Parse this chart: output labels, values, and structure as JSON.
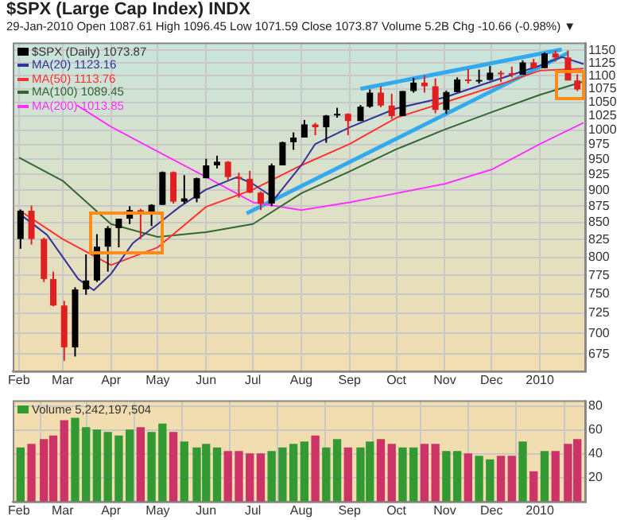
{
  "chart_data": [
    {
      "type": "candlestick",
      "title": "$SPX (Large Cap Index) INDX",
      "subtitle": "29-Jan-2010   Open 1087.61  High 1096.45  Low 1071.59  Close 1073.87  Volume 5.2B  Chg -10.66 (-0.98%) ▼",
      "log": true,
      "grid": true,
      "legend": "top left",
      "xlim": [
        "2009-01-28",
        "2010-01-30"
      ],
      "xticks": [
        {
          "value": "2009-02-01",
          "label": "Feb"
        },
        {
          "value": "2009-03-01",
          "label": "Mar"
        },
        {
          "value": "2009-04-01",
          "label": "Apr"
        },
        {
          "value": "2009-05-01",
          "label": "May"
        },
        {
          "value": "2009-06-01",
          "label": "Jun"
        },
        {
          "value": "2009-07-01",
          "label": "Jul"
        },
        {
          "value": "2009-08-01",
          "label": "Aug"
        },
        {
          "value": "2009-09-01",
          "label": "Sep"
        },
        {
          "value": "2009-10-01",
          "label": "Oct"
        },
        {
          "value": "2009-11-01",
          "label": "Nov"
        },
        {
          "value": "2009-12-01",
          "label": "Dec"
        },
        {
          "value": "2010-01-01",
          "label": "2010"
        }
      ],
      "ylim": [
        655,
        1166
      ],
      "yticks": [
        675,
        700,
        725,
        750,
        775,
        800,
        825,
        850,
        875,
        900,
        925,
        950,
        975,
        1000,
        1025,
        1050,
        1075,
        1100,
        1125,
        1150
      ],
      "series": [
        {
          "type": "candlestick",
          "name": "$SPX (Daily) 1073.87",
          "color": "#000000",
          "x": [
            "2009-02-02",
            "2009-02-09",
            "2009-02-17",
            "2009-02-23",
            "2009-03-02",
            "2009-03-09",
            "2009-03-16",
            "2009-03-23",
            "2009-03-30",
            "2009-04-06",
            "2009-04-13",
            "2009-04-20",
            "2009-04-27",
            "2009-05-04",
            "2009-05-11",
            "2009-05-18",
            "2009-05-26",
            "2009-06-01",
            "2009-06-08",
            "2009-06-15",
            "2009-06-22",
            "2009-06-29",
            "2009-07-06",
            "2009-07-13",
            "2009-07-20",
            "2009-07-27",
            "2009-08-03",
            "2009-08-10",
            "2009-08-17",
            "2009-08-24",
            "2009-08-31",
            "2009-09-08",
            "2009-09-14",
            "2009-09-21",
            "2009-09-28",
            "2009-10-05",
            "2009-10-12",
            "2009-10-19",
            "2009-10-26",
            "2009-11-02",
            "2009-11-09",
            "2009-11-16",
            "2009-11-23",
            "2009-11-30",
            "2009-12-07",
            "2009-12-14",
            "2009-12-21",
            "2009-12-28",
            "2010-01-04",
            "2010-01-11",
            "2010-01-19",
            "2010-01-25"
          ],
          "ohlc": [
            [
              826,
              870,
              812,
              868
            ],
            [
              868,
              876,
              818,
              826
            ],
            [
              826,
              828,
              766,
              770
            ],
            [
              770,
              780,
              734,
              735
            ],
            [
              735,
              741,
              667,
              683
            ],
            [
              683,
              759,
              672,
              756
            ],
            [
              756,
              804,
              749,
              768
            ],
            [
              768,
              833,
              766,
              815
            ],
            [
              815,
              845,
              780,
              842
            ],
            [
              842,
              856,
              814,
              856
            ],
            [
              856,
              875,
              848,
              869
            ],
            [
              869,
              871,
              826,
              866
            ],
            [
              866,
              878,
              845,
              877
            ],
            [
              877,
              930,
              877,
              929
            ],
            [
              929,
              930,
              879,
              882
            ],
            [
              882,
              924,
              879,
              887
            ],
            [
              887,
              920,
              881,
              919
            ],
            [
              919,
              951,
              919,
              940
            ],
            [
              940,
              956,
              935,
              946
            ],
            [
              946,
              947,
              916,
              921
            ],
            [
              921,
              928,
              888,
              918
            ],
            [
              918,
              931,
              895,
              896
            ],
            [
              896,
              898,
              869,
              879
            ],
            [
              879,
              943,
              875,
              940
            ],
            [
              940,
              980,
              940,
              979
            ],
            [
              979,
              996,
              966,
              987
            ],
            [
              987,
              1018,
              987,
              1010
            ],
            [
              1010,
              1013,
              991,
              1005
            ],
            [
              1005,
              1027,
              978,
              1026
            ],
            [
              1026,
              1040,
              1022,
              1029
            ],
            [
              1029,
              1030,
              991,
              1016
            ],
            [
              1016,
              1045,
              1016,
              1042
            ],
            [
              1042,
              1074,
              1040,
              1068
            ],
            [
              1068,
              1080,
              1041,
              1044
            ],
            [
              1044,
              1066,
              1020,
              1025
            ],
            [
              1025,
              1071,
              1025,
              1071
            ],
            [
              1071,
              1096,
              1068,
              1087
            ],
            [
              1087,
              1101,
              1068,
              1080
            ],
            [
              1080,
              1095,
              1030,
              1036
            ],
            [
              1036,
              1072,
              1029,
              1069
            ],
            [
              1069,
              1097,
              1069,
              1093
            ],
            [
              1093,
              1113,
              1085,
              1091
            ],
            [
              1091,
              1112,
              1085,
              1092
            ],
            [
              1092,
              1119,
              1091,
              1106
            ],
            [
              1106,
              1110,
              1088,
              1105
            ],
            [
              1105,
              1118,
              1097,
              1102
            ],
            [
              1102,
              1130,
              1102,
              1126
            ],
            [
              1126,
              1133,
              1115,
              1115
            ],
            [
              1115,
              1146,
              1115,
              1144
            ],
            [
              1144,
              1150,
              1128,
              1136
            ],
            [
              1136,
              1150,
              1091,
              1091
            ],
            [
              1091,
              1103,
              1071,
              1074
            ]
          ],
          "colors": [
            "#000000",
            "#e02020",
            "#e02020",
            "#e02020",
            "#e02020",
            "#000000",
            "#000000",
            "#000000",
            "#000000",
            "#000000",
            "#000000",
            "#e02020",
            "#000000",
            "#000000",
            "#e02020",
            "#000000",
            "#000000",
            "#000000",
            "#000000",
            "#e02020",
            "#e02020",
            "#e02020",
            "#e02020",
            "#000000",
            "#000000",
            "#000000",
            "#000000",
            "#e02020",
            "#000000",
            "#000000",
            "#e02020",
            "#000000",
            "#000000",
            "#e02020",
            "#e02020",
            "#000000",
            "#000000",
            "#e02020",
            "#e02020",
            "#000000",
            "#000000",
            "#e02020",
            "#000000",
            "#000000",
            "#e02020",
            "#e02020",
            "#000000",
            "#e02020",
            "#000000",
            "#e02020",
            "#e02020",
            "#e02020"
          ]
        },
        {
          "type": "line",
          "name": "MA(20) 1123.16",
          "color": "#333399",
          "x": [
            "2009-02-01",
            "2009-02-19",
            "2009-03-11",
            "2009-03-21",
            "2009-04-01",
            "2009-04-15",
            "2009-05-01",
            "2009-05-15",
            "2009-06-01",
            "2009-06-21",
            "2009-07-01",
            "2009-07-15",
            "2009-08-01",
            "2009-08-10",
            "2009-09-01",
            "2009-10-01",
            "2009-11-01",
            "2009-12-01",
            "2010-01-01",
            "2010-01-15",
            "2010-01-29"
          ],
          "values": [
            864,
            832,
            770,
            755,
            777,
            820,
            848,
            874,
            901,
            921,
            910,
            887,
            940,
            976,
            1005,
            1039,
            1059,
            1089,
            1120,
            1137,
            1123
          ]
        },
        {
          "type": "line",
          "name": "MA(50) 1113.76",
          "color": "#ff3333",
          "x": [
            "2009-02-01",
            "2009-03-01",
            "2009-04-01",
            "2009-05-01",
            "2009-06-01",
            "2009-07-01",
            "2009-08-01",
            "2009-09-01",
            "2009-10-01",
            "2009-11-01",
            "2009-12-01",
            "2010-01-01",
            "2010-01-29"
          ],
          "values": [
            869,
            826,
            789,
            814,
            874,
            901,
            940,
            976,
            1022,
            1050,
            1078,
            1110,
            1114
          ]
        },
        {
          "type": "line",
          "name": "MA(100) 1089.45",
          "color": "#336633",
          "x": [
            "2009-02-01",
            "2009-03-01",
            "2009-04-01",
            "2009-05-01",
            "2009-06-01",
            "2009-07-01",
            "2009-08-01",
            "2009-09-01",
            "2009-10-01",
            "2009-11-01",
            "2009-12-01",
            "2010-01-01",
            "2010-01-29"
          ],
          "values": [
            953,
            915,
            848,
            829,
            836,
            848,
            895,
            930,
            967,
            1001,
            1032,
            1064,
            1089
          ]
        },
        {
          "type": "line",
          "name": "MA(200) 1013.85",
          "color": "#ff33ff",
          "x": [
            "2009-03-10",
            "2009-04-01",
            "2009-05-01",
            "2009-06-01",
            "2009-07-01",
            "2009-08-01",
            "2009-09-01",
            "2009-10-01",
            "2009-11-01",
            "2009-12-01",
            "2010-01-01",
            "2010-01-29"
          ],
          "values": [
            1045,
            1006,
            963,
            921,
            881,
            869,
            881,
            895,
            910,
            933,
            976,
            1013
          ]
        },
        {
          "type": "line",
          "color": "#33aaee",
          "x": [
            "2009-06-27",
            "2010-01-19"
          ],
          "values": [
            864,
            1145
          ]
        },
        {
          "type": "line",
          "color": "#33aaee",
          "x": [
            "2009-09-08",
            "2010-01-15"
          ],
          "values": [
            1075,
            1152
          ]
        }
      ]
    },
    {
      "type": "bar",
      "grid": true,
      "legend": "top left",
      "xlim": [
        "2009-01-28",
        "2010-01-30"
      ],
      "xticks": [
        {
          "value": "2009-02-01",
          "label": "Feb"
        },
        {
          "value": "2009-03-01",
          "label": "Mar"
        },
        {
          "value": "2009-04-01",
          "label": "Apr"
        },
        {
          "value": "2009-05-01",
          "label": "May"
        },
        {
          "value": "2009-06-01",
          "label": "Jun"
        },
        {
          "value": "2009-07-01",
          "label": "Jul"
        },
        {
          "value": "2009-08-01",
          "label": "Aug"
        },
        {
          "value": "2009-09-01",
          "label": "Sep"
        },
        {
          "value": "2009-10-01",
          "label": "Oct"
        },
        {
          "value": "2009-11-01",
          "label": "Nov"
        },
        {
          "value": "2009-12-01",
          "label": "Dec"
        },
        {
          "value": "2010-01-01",
          "label": "2010"
        }
      ],
      "ylim": [
        0,
        85
      ],
      "yticks": [
        20,
        40,
        60,
        80
      ],
      "series": [
        {
          "type": "bar",
          "name": "Volume 5,242,197,504",
          "color": "#339933",
          "x": [
            "2009-02-02",
            "2009-02-09",
            "2009-02-17",
            "2009-02-23",
            "2009-03-02",
            "2009-03-09",
            "2009-03-16",
            "2009-03-23",
            "2009-03-30",
            "2009-04-06",
            "2009-04-13",
            "2009-04-20",
            "2009-04-27",
            "2009-05-04",
            "2009-05-11",
            "2009-05-18",
            "2009-05-26",
            "2009-06-01",
            "2009-06-08",
            "2009-06-15",
            "2009-06-22",
            "2009-06-29",
            "2009-07-06",
            "2009-07-13",
            "2009-07-20",
            "2009-07-27",
            "2009-08-03",
            "2009-08-10",
            "2009-08-17",
            "2009-08-24",
            "2009-08-31",
            "2009-09-08",
            "2009-09-14",
            "2009-09-21",
            "2009-09-28",
            "2009-10-05",
            "2009-10-12",
            "2009-10-19",
            "2009-10-26",
            "2009-11-02",
            "2009-11-09",
            "2009-11-16",
            "2009-11-23",
            "2009-11-30",
            "2009-12-07",
            "2009-12-14",
            "2009-12-21",
            "2009-12-28",
            "2010-01-04",
            "2010-01-11",
            "2010-01-19",
            "2010-01-25"
          ],
          "values": [
            45,
            48,
            52,
            55,
            68,
            70,
            62,
            60,
            58,
            55,
            60,
            62,
            58,
            65,
            58,
            50,
            45,
            48,
            45,
            42,
            42,
            40,
            40,
            42,
            45,
            48,
            50,
            55,
            45,
            52,
            45,
            45,
            50,
            52,
            48,
            45,
            45,
            48,
            48,
            42,
            42,
            40,
            38,
            35,
            38,
            38,
            50,
            25,
            42,
            42,
            48,
            52
          ],
          "colors": [
            "#339933",
            "#cc3366",
            "#cc3366",
            "#cc3366",
            "#cc3366",
            "#339933",
            "#339933",
            "#339933",
            "#339933",
            "#339933",
            "#339933",
            "#cc3366",
            "#339933",
            "#339933",
            "#cc3366",
            "#339933",
            "#339933",
            "#339933",
            "#339933",
            "#cc3366",
            "#cc3366",
            "#cc3366",
            "#cc3366",
            "#339933",
            "#339933",
            "#339933",
            "#339933",
            "#cc3366",
            "#339933",
            "#339933",
            "#cc3366",
            "#339933",
            "#339933",
            "#cc3366",
            "#cc3366",
            "#339933",
            "#339933",
            "#cc3366",
            "#cc3366",
            "#339933",
            "#339933",
            "#cc3366",
            "#339933",
            "#339933",
            "#cc3366",
            "#cc3366",
            "#339933",
            "#cc3366",
            "#339933",
            "#cc3366",
            "#cc3366",
            "#cc3366"
          ]
        }
      ]
    }
  ]
}
